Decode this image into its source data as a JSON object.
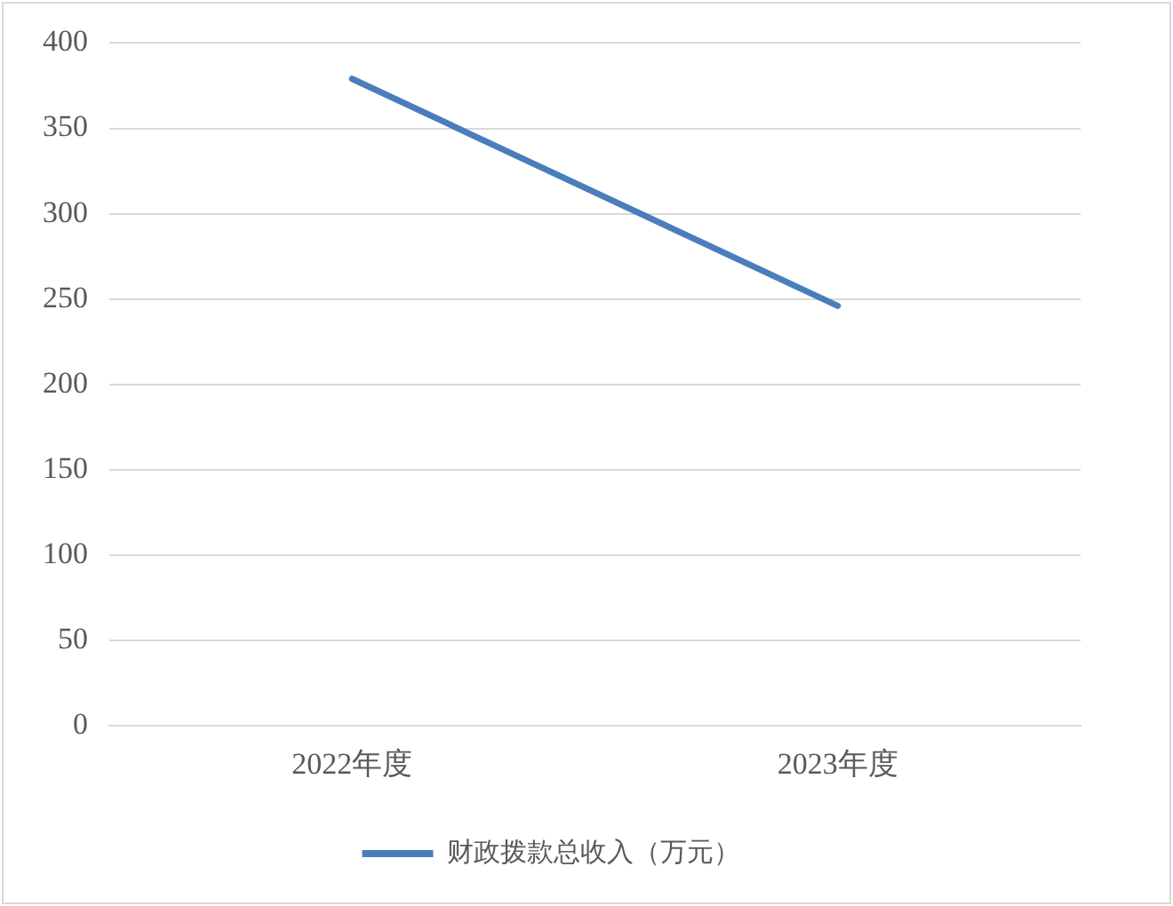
{
  "chart_data": {
    "type": "line",
    "categories": [
      "2022年度",
      "2023年度"
    ],
    "series": [
      {
        "name": "财政拨款总收入（万元）",
        "color": "#4a7ebb",
        "values": [
          379,
          246
        ]
      }
    ],
    "ylim": [
      0,
      400
    ],
    "yticks": [
      0,
      50,
      100,
      150,
      200,
      250,
      300,
      350,
      400
    ],
    "grid": "y",
    "legend": "bottom",
    "marker": "none",
    "line_style": "solid"
  }
}
